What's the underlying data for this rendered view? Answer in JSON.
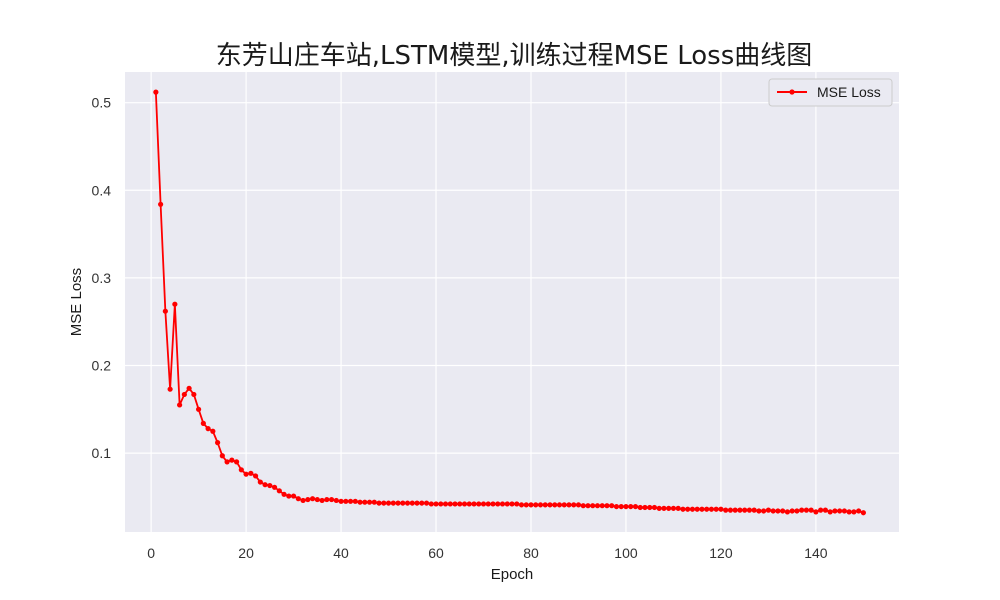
{
  "chart_data": {
    "type": "line",
    "title": "东芳山庄车站,LSTM模型,训练过程MSE Loss曲线图",
    "xlabel": "Epoch",
    "ylabel": "MSE Loss",
    "xlim": [
      -5.5,
      157.5
    ],
    "ylim": [
      0.01,
      0.535
    ],
    "xticks": [
      0,
      20,
      40,
      60,
      80,
      100,
      120,
      140
    ],
    "yticks": [
      0.1,
      0.2,
      0.3,
      0.4,
      0.5
    ],
    "xtick_labels": [
      "0",
      "20",
      "40",
      "60",
      "80",
      "100",
      "120",
      "140"
    ],
    "ytick_labels": [
      "0.1",
      "0.2",
      "0.3",
      "0.4",
      "0.5"
    ],
    "grid": true,
    "legend_position": "top-right",
    "series": [
      {
        "name": "MSE Loss",
        "color": "#ff0000",
        "marker": "circle",
        "x": [
          1,
          2,
          3,
          4,
          5,
          6,
          7,
          8,
          9,
          10,
          11,
          12,
          13,
          14,
          15,
          16,
          17,
          18,
          19,
          20,
          21,
          22,
          23,
          24,
          25,
          26,
          27,
          28,
          29,
          30,
          31,
          32,
          33,
          34,
          35,
          36,
          37,
          38,
          39,
          40,
          41,
          42,
          43,
          44,
          45,
          46,
          47,
          48,
          49,
          50,
          51,
          52,
          53,
          54,
          55,
          56,
          57,
          58,
          59,
          60,
          61,
          62,
          63,
          64,
          65,
          66,
          67,
          68,
          69,
          70,
          71,
          72,
          73,
          74,
          75,
          76,
          77,
          78,
          79,
          80,
          81,
          82,
          83,
          84,
          85,
          86,
          87,
          88,
          89,
          90,
          91,
          92,
          93,
          94,
          95,
          96,
          97,
          98,
          99,
          100,
          101,
          102,
          103,
          104,
          105,
          106,
          107,
          108,
          109,
          110,
          111,
          112,
          113,
          114,
          115,
          116,
          117,
          118,
          119,
          120,
          121,
          122,
          123,
          124,
          125,
          126,
          127,
          128,
          129,
          130,
          131,
          132,
          133,
          134,
          135,
          136,
          137,
          138,
          139,
          140,
          141,
          142,
          143,
          144,
          145,
          146,
          147,
          148,
          149,
          150
        ],
        "y": [
          0.512,
          0.384,
          0.262,
          0.173,
          0.27,
          0.155,
          0.167,
          0.174,
          0.167,
          0.15,
          0.134,
          0.128,
          0.125,
          0.112,
          0.097,
          0.09,
          0.092,
          0.09,
          0.081,
          0.076,
          0.077,
          0.074,
          0.067,
          0.064,
          0.063,
          0.061,
          0.057,
          0.053,
          0.051,
          0.051,
          0.048,
          0.046,
          0.047,
          0.048,
          0.047,
          0.046,
          0.047,
          0.047,
          0.046,
          0.045,
          0.045,
          0.045,
          0.045,
          0.044,
          0.044,
          0.044,
          0.044,
          0.043,
          0.043,
          0.043,
          0.043,
          0.043,
          0.043,
          0.043,
          0.043,
          0.043,
          0.043,
          0.043,
          0.042,
          0.042,
          0.042,
          0.042,
          0.042,
          0.042,
          0.042,
          0.042,
          0.042,
          0.042,
          0.042,
          0.042,
          0.042,
          0.042,
          0.042,
          0.042,
          0.042,
          0.042,
          0.042,
          0.041,
          0.041,
          0.041,
          0.041,
          0.041,
          0.041,
          0.041,
          0.041,
          0.041,
          0.041,
          0.041,
          0.041,
          0.041,
          0.04,
          0.04,
          0.04,
          0.04,
          0.04,
          0.04,
          0.04,
          0.039,
          0.039,
          0.039,
          0.039,
          0.039,
          0.038,
          0.038,
          0.038,
          0.038,
          0.037,
          0.037,
          0.037,
          0.037,
          0.037,
          0.036,
          0.036,
          0.036,
          0.036,
          0.036,
          0.036,
          0.036,
          0.036,
          0.036,
          0.035,
          0.035,
          0.035,
          0.035,
          0.035,
          0.035,
          0.035,
          0.034,
          0.034,
          0.035,
          0.034,
          0.034,
          0.034,
          0.033,
          0.034,
          0.034,
          0.035,
          0.035,
          0.035,
          0.033,
          0.035,
          0.035,
          0.033,
          0.034,
          0.034,
          0.034,
          0.033,
          0.033,
          0.034,
          0.032
        ]
      }
    ]
  }
}
